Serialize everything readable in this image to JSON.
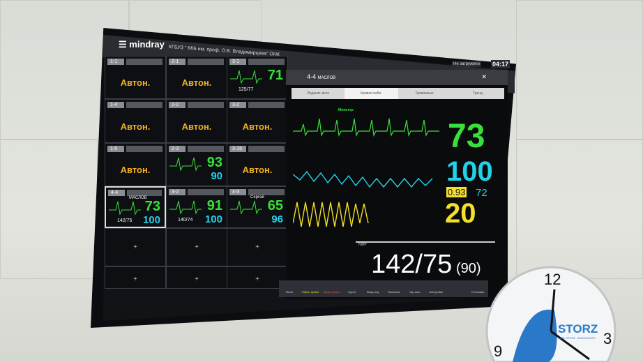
{
  "header": {
    "brand": "mindray",
    "hospital": "КГБУЗ \" ККБ им. проф. О.В. Владимирцева\" ОНК",
    "status": "Не загружено",
    "time": "04:17"
  },
  "grid": [
    {
      "bed": "1-1",
      "state": "Автон."
    },
    {
      "bed": "2-1",
      "state": "Автон."
    },
    {
      "bed": "3-1",
      "hr": "71",
      "nibp": "125/77"
    },
    {
      "bed": "1-4",
      "state": "Автон."
    },
    {
      "bed": "2-2",
      "state": "Автон."
    },
    {
      "bed": "3-2",
      "state": "Автон."
    },
    {
      "bed": "1-5",
      "state": "Автон."
    },
    {
      "bed": "2-3",
      "hr": "93",
      "spo2": "90"
    },
    {
      "bed": "3-15",
      "state": "Автон."
    },
    {
      "bed": "4-4",
      "name": "МАСЛОВ",
      "hr": "73",
      "spo2": "100",
      "nibp": "142/75"
    },
    {
      "bed": "4-2",
      "hr": "91",
      "spo2": "100",
      "nibp": "140/74"
    },
    {
      "bed": "4-3",
      "name": "Сергей",
      "hr": "65",
      "spo2": "96"
    }
  ],
  "empty_plus": "+",
  "panel": {
    "bed": "4-4",
    "name": "МАСЛОВ",
    "tabs": [
      "Индикат. всех",
      "Кривая набл.",
      "Тревожные",
      "Тренд"
    ],
    "ecg_label": "Монитор",
    "hr": "73",
    "spo2": "100",
    "pi": "0.93",
    "pr": "72",
    "rr": "20",
    "nibp_label": "NIBP",
    "nibp": "142/75",
    "nibp_mean": "(90)"
  },
  "toolbar": [
    "Меню",
    "Сброс тревог",
    "Пауза тревог",
    "Принт",
    "Ввод пац.",
    "Выписка",
    "Экр.мон.",
    "Настройки",
    "",
    "Установки"
  ],
  "colors": {
    "hr": "#39e039",
    "spo2": "#22d3e8",
    "resp": "#f4e02a",
    "auto": "#f0b024"
  },
  "clock": {
    "brand": "STORZ",
    "sub": "KARL STORZ - ENDOSKOPE",
    "n12": "12",
    "n3": "3",
    "n9": "9"
  }
}
